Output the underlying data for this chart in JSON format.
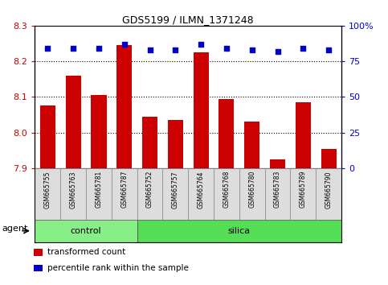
{
  "title": "GDS5199 / ILMN_1371248",
  "samples": [
    "GSM665755",
    "GSM665763",
    "GSM665781",
    "GSM665787",
    "GSM665752",
    "GSM665757",
    "GSM665764",
    "GSM665768",
    "GSM665780",
    "GSM665783",
    "GSM665789",
    "GSM665790"
  ],
  "groups": [
    "control",
    "control",
    "control",
    "control",
    "silica",
    "silica",
    "silica",
    "silica",
    "silica",
    "silica",
    "silica",
    "silica"
  ],
  "bar_values": [
    8.075,
    8.16,
    8.105,
    8.245,
    8.045,
    8.035,
    8.225,
    8.095,
    8.03,
    7.925,
    8.085,
    7.955
  ],
  "percentile_values": [
    84,
    84,
    84,
    87,
    83,
    83,
    87,
    84,
    83,
    82,
    84,
    83
  ],
  "bar_color": "#cc0000",
  "dot_color": "#0000cc",
  "ylim_left": [
    7.9,
    8.3
  ],
  "ylim_right": [
    0,
    100
  ],
  "yticks_left": [
    7.9,
    8.0,
    8.1,
    8.2,
    8.3
  ],
  "yticks_right": [
    0,
    25,
    50,
    75,
    100
  ],
  "ytick_labels_right": [
    "0",
    "25",
    "50",
    "75",
    "100%"
  ],
  "grid_lines": [
    8.0,
    8.1,
    8.2
  ],
  "control_color": "#88ee88",
  "silica_color": "#55dd55",
  "bar_width": 0.6,
  "agent_label": "agent",
  "legend_items": [
    {
      "color": "#cc0000",
      "label": "transformed count"
    },
    {
      "color": "#0000cc",
      "label": "percentile rank within the sample"
    }
  ]
}
